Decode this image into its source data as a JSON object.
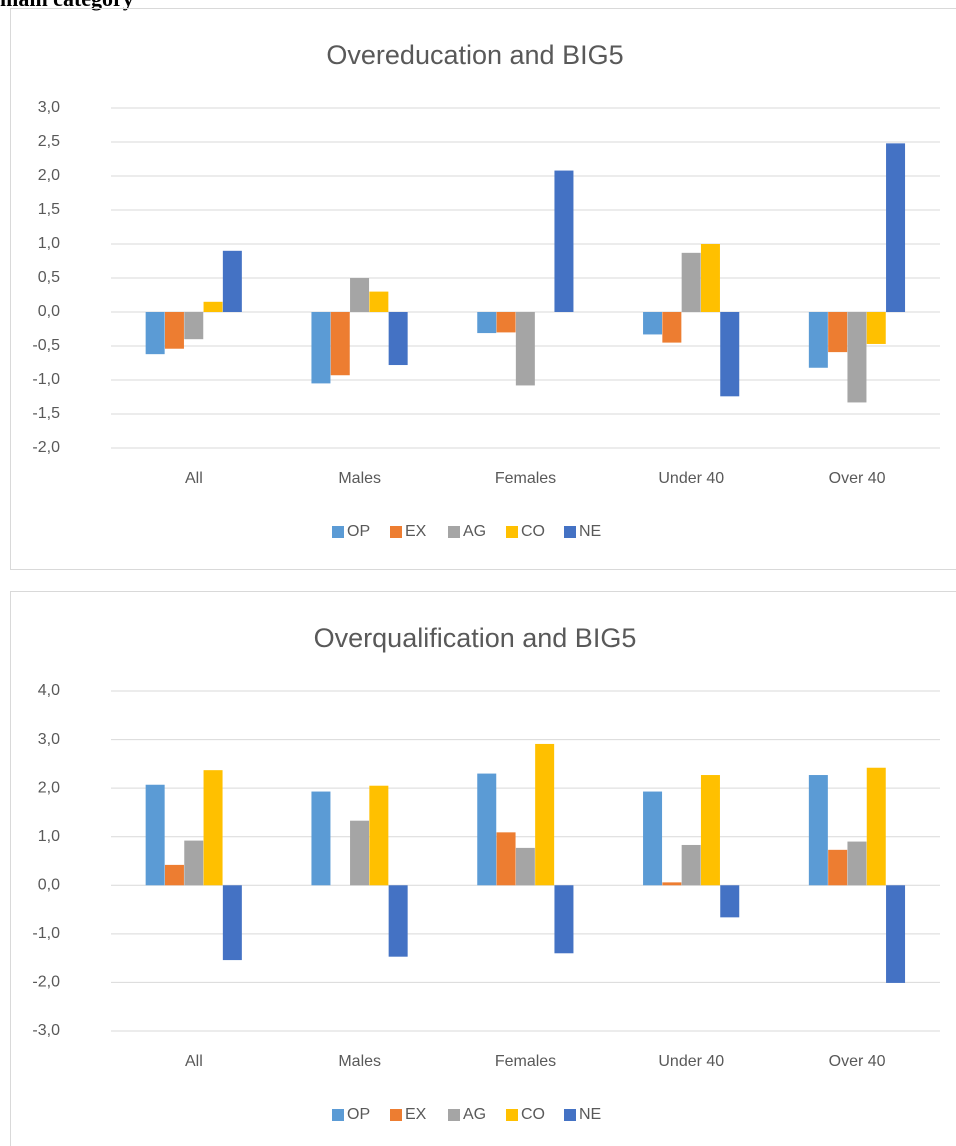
{
  "header_text": "main category",
  "chart_data": [
    {
      "type": "bar",
      "title": "Overeducation and BIG5",
      "categories": [
        "All",
        "Males",
        "Females",
        "Under 40",
        "Over 40"
      ],
      "series": [
        {
          "name": "OP",
          "color": "#5b9bd5",
          "values": [
            -0.62,
            -1.05,
            -0.31,
            -0.33,
            -0.82
          ]
        },
        {
          "name": "EX",
          "color": "#ed7d31",
          "values": [
            -0.54,
            -0.93,
            -0.3,
            -0.45,
            -0.59
          ]
        },
        {
          "name": "AG",
          "color": "#a5a5a5",
          "values": [
            -0.4,
            0.5,
            -1.08,
            0.87,
            -1.33
          ]
        },
        {
          "name": "CO",
          "color": "#ffc000",
          "values": [
            0.15,
            0.3,
            0,
            1.0,
            -0.47
          ]
        },
        {
          "name": "NE",
          "color": "#4472c4",
          "values": [
            0.9,
            -0.78,
            2.08,
            -1.24,
            2.48
          ]
        }
      ],
      "ylim": [
        -2,
        3
      ],
      "yticks": [
        {
          "value": -2,
          "label": "-2,0"
        },
        {
          "value": -1.5,
          "label": "-1,5"
        },
        {
          "value": -1,
          "label": "-1,0"
        },
        {
          "value": -0.5,
          "label": "-0,5"
        },
        {
          "value": 0,
          "label": "0,0"
        },
        {
          "value": 0.5,
          "label": "0,5"
        },
        {
          "value": 1,
          "label": "1,0"
        },
        {
          "value": 1.5,
          "label": "1,5"
        },
        {
          "value": 2,
          "label": "2,0"
        },
        {
          "value": 2.5,
          "label": "2,5"
        },
        {
          "value": 3,
          "label": "3,0"
        }
      ],
      "grid": true,
      "legend": "bottom"
    },
    {
      "type": "bar",
      "title": "Overqualification and BIG5",
      "categories": [
        "All",
        "Males",
        "Females",
        "Under 40",
        "Over 40"
      ],
      "series": [
        {
          "name": "OP",
          "color": "#5b9bd5",
          "values": [
            2.07,
            1.93,
            2.3,
            1.93,
            2.27
          ]
        },
        {
          "name": "EX",
          "color": "#ed7d31",
          "values": [
            0.42,
            0,
            1.09,
            0.06,
            0.73
          ]
        },
        {
          "name": "AG",
          "color": "#a5a5a5",
          "values": [
            0.92,
            1.33,
            0.77,
            0.83,
            0.9
          ]
        },
        {
          "name": "CO",
          "color": "#ffc000",
          "values": [
            2.37,
            2.05,
            2.91,
            2.27,
            2.42
          ]
        },
        {
          "name": "NE",
          "color": "#4472c4",
          "values": [
            -1.54,
            -1.47,
            -1.4,
            -0.66,
            -2.01
          ]
        }
      ],
      "ylim": [
        -3,
        4
      ],
      "yticks": [
        {
          "value": -3,
          "label": "-3,0"
        },
        {
          "value": -2,
          "label": "-2,0"
        },
        {
          "value": -1,
          "label": "-1,0"
        },
        {
          "value": 0,
          "label": "0,0"
        },
        {
          "value": 1,
          "label": "1,0"
        },
        {
          "value": 2,
          "label": "2,0"
        },
        {
          "value": 3,
          "label": "3,0"
        },
        {
          "value": 4,
          "label": "4,0"
        }
      ],
      "grid": true,
      "legend": "bottom"
    }
  ]
}
